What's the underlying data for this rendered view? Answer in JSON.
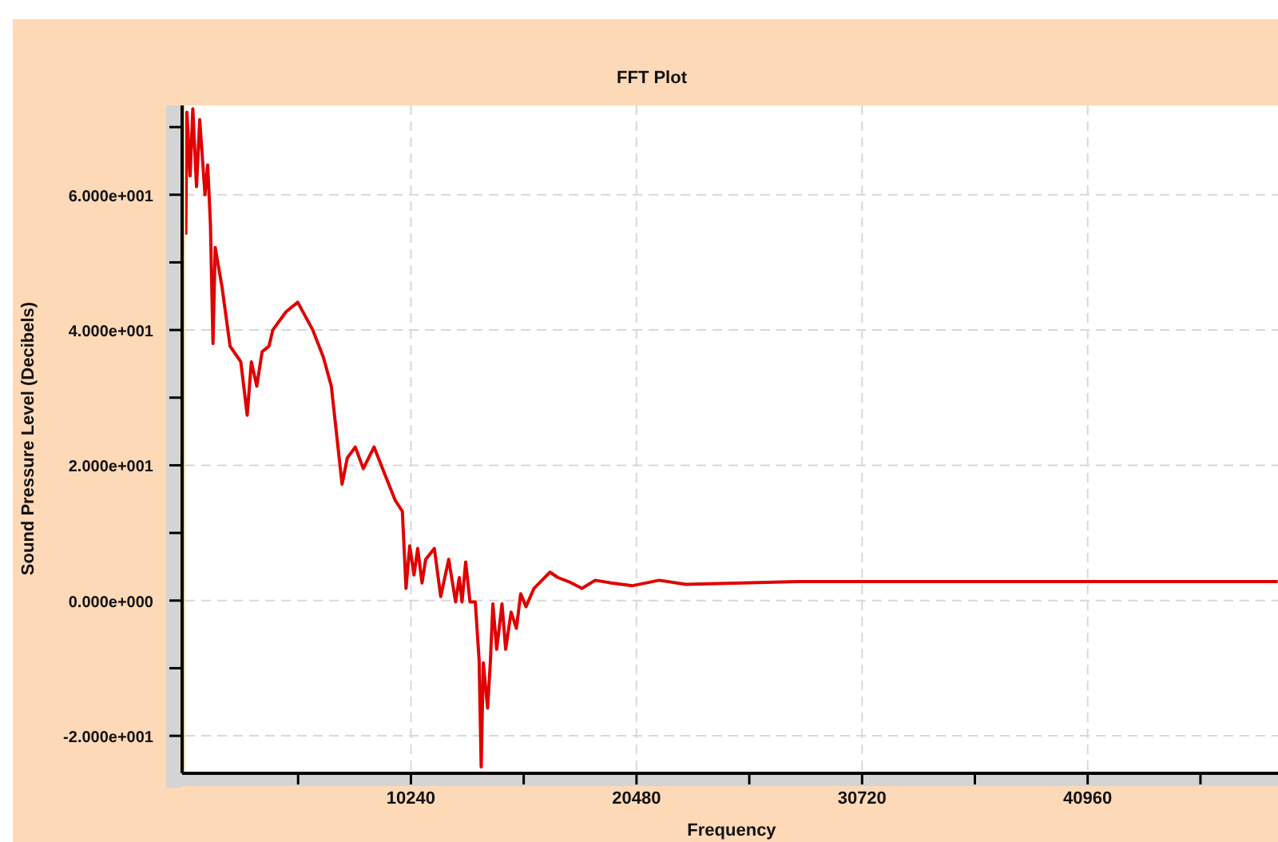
{
  "chart_data": {
    "type": "line",
    "title": "FFT Plot",
    "xlabel": "Frequency",
    "ylabel": "Sound Pressure Level (Decibels)",
    "xlim": [
      0,
      49600
    ],
    "ylim": [
      -25.3,
      73.2
    ],
    "xticks": [
      {
        "value": 5120,
        "label": null
      },
      10240,
      {
        "value": 15360,
        "label": null
      },
      20480,
      {
        "value": 25600,
        "label": null
      },
      30720,
      {
        "value": 35840,
        "label": null
      },
      40960,
      {
        "value": 46080,
        "label": null
      }
    ],
    "yticks": [
      {
        "value": -20,
        "label": "-2.000e+001"
      },
      {
        "value": -10,
        "label": null
      },
      {
        "value": 0,
        "label": "0.000e+000"
      },
      {
        "value": 10,
        "label": null
      },
      {
        "value": 20,
        "label": "2.000e+001"
      },
      {
        "value": 30,
        "label": null
      },
      {
        "value": 40,
        "label": "4.000e+001"
      },
      {
        "value": 50,
        "label": null
      },
      {
        "value": 60,
        "label": "6.000e+001"
      },
      {
        "value": 70,
        "label": null
      }
    ],
    "grid": true,
    "line_style": "solid",
    "marker": "none",
    "x": [
      22,
      73,
      218,
      341,
      508,
      654,
      893,
      1016,
      1140,
      1256,
      1358,
      1670,
      2033,
      2519,
      2810,
      2998,
      3245,
      3485,
      3797,
      3971,
      4574,
      5104,
      5786,
      6265,
      6628,
      7115,
      7354,
      7717,
      8080,
      8567,
      9053,
      9532,
      9852,
      10019,
      10186,
      10382,
      10549,
      10745,
      10912,
      11304,
      11594,
      11957,
      12269,
      12436,
      12560,
      12727,
      12923,
      13162,
      13337,
      13431,
      13526,
      13721,
      13845,
      13961,
      14135,
      14375,
      14542,
      14789,
      15028,
      15224,
      15464,
      15827,
      16190,
      16553,
      16916,
      17402,
      18005,
      18607,
      19333,
      20306,
      21511,
      22724,
      27806,
      35066,
      49586
    ],
    "series": [
      {
        "color": "#e00000",
        "values": [
          54.1,
          72.2,
          62.8,
          72.7,
          61.2,
          71.1,
          60,
          64.4,
          55.7,
          38,
          52.2,
          46.3,
          37.6,
          35.3,
          27.4,
          35.3,
          31.7,
          36.8,
          37.6,
          40,
          42.7,
          44.1,
          40,
          36,
          31.7,
          17.2,
          21.1,
          22.7,
          19.5,
          22.7,
          18.7,
          14.8,
          13.2,
          1.8,
          8.1,
          3.8,
          7.7,
          2.6,
          6.1,
          7.7,
          0.6,
          6.1,
          -0.2,
          3.4,
          -0.2,
          5.7,
          -0.2,
          -0.2,
          -8.8,
          -24.6,
          -9.2,
          -15.9,
          -9.2,
          -0.5,
          -7.2,
          -0.5,
          -7.2,
          -1.7,
          -4.1,
          1.0,
          -0.9,
          1.8,
          3.0,
          4.2,
          3.4,
          2.8,
          1.8,
          3.0,
          2.6,
          2.2,
          3.0,
          2.4,
          2.8,
          2.8,
          2.8
        ]
      }
    ]
  }
}
